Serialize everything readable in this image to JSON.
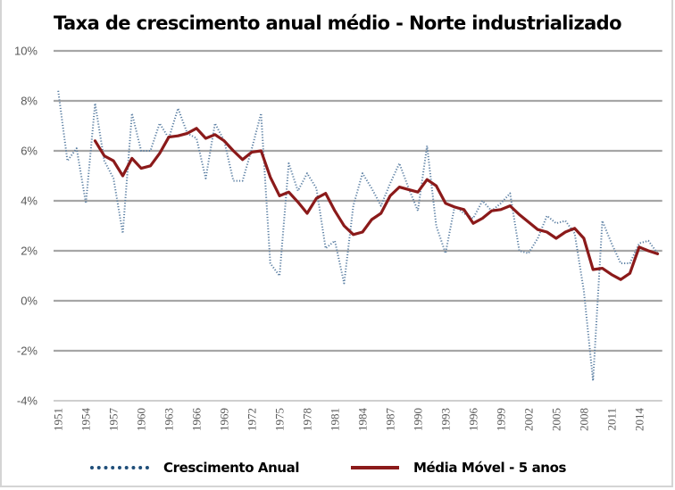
{
  "chart_data": {
    "type": "line",
    "title": "Taxa de crescimento anual médio - Norte industrializado",
    "xlabel": "",
    "ylabel": "",
    "ylim": [
      -4,
      10
    ],
    "y_ticks": [
      10,
      8,
      6,
      4,
      2,
      0,
      -2,
      -4
    ],
    "y_tick_labels": [
      "10%",
      "8%",
      "6%",
      "4%",
      "2%",
      "0%",
      "-2%",
      "-4%"
    ],
    "x_tick_labels": [
      "1951",
      "1954",
      "1957",
      "1960",
      "1963",
      "1966",
      "1969",
      "1972",
      "1975",
      "1978",
      "1981",
      "1984",
      "1987",
      "1990",
      "1993",
      "1996",
      "1999",
      "2002",
      "2005",
      "2008",
      "2011",
      "2014"
    ],
    "grid": true,
    "legend_position": "bottom",
    "x": [
      1951,
      1952,
      1953,
      1954,
      1955,
      1956,
      1957,
      1958,
      1959,
      1960,
      1961,
      1962,
      1963,
      1964,
      1965,
      1966,
      1967,
      1968,
      1969,
      1970,
      1971,
      1972,
      1973,
      1974,
      1975,
      1976,
      1977,
      1978,
      1979,
      1980,
      1981,
      1982,
      1983,
      1984,
      1985,
      1986,
      1987,
      1988,
      1989,
      1990,
      1991,
      1992,
      1993,
      1994,
      1995,
      1996,
      1997,
      1998,
      1999,
      2000,
      2001,
      2002,
      2003,
      2004,
      2005,
      2006,
      2007,
      2008,
      2009,
      2010,
      2011,
      2012,
      2013,
      2014,
      2015,
      2016
    ],
    "series": [
      {
        "name": "Crescimento Anual",
        "style": "dotted",
        "color": "#5b7fa3",
        "values": [
          8.4,
          5.6,
          6.1,
          3.9,
          7.9,
          5.6,
          4.9,
          2.7,
          7.5,
          6.0,
          6.0,
          7.1,
          6.5,
          7.7,
          6.7,
          6.5,
          4.9,
          7.1,
          6.4,
          4.8,
          4.8,
          6.1,
          7.5,
          1.5,
          1.0,
          5.5,
          4.4,
          5.1,
          4.5,
          2.1,
          2.4,
          0.7,
          3.8,
          5.1,
          4.5,
          3.8,
          4.7,
          5.5,
          4.5,
          3.6,
          6.2,
          3.0,
          1.9,
          3.8,
          3.5,
          3.3,
          4.0,
          3.6,
          3.9,
          4.3,
          2.0,
          1.9,
          2.5,
          3.4,
          3.1,
          3.2,
          2.7,
          0.4,
          -3.2,
          3.2,
          2.3,
          1.5,
          1.5,
          2.3,
          2.4,
          1.9
        ]
      },
      {
        "name": "Média Móvel - 5 anos",
        "style": "solid",
        "color": "#8b1a1a",
        "values": [
          null,
          null,
          null,
          null,
          6.4,
          5.8,
          5.6,
          5.0,
          5.7,
          5.3,
          5.4,
          5.9,
          6.55,
          6.6,
          6.7,
          6.9,
          6.5,
          6.65,
          6.4,
          6.0,
          5.65,
          5.95,
          6.0,
          4.95,
          4.2,
          4.35,
          3.95,
          3.5,
          4.1,
          4.3,
          3.6,
          3.0,
          2.65,
          2.75,
          3.25,
          3.5,
          4.2,
          4.55,
          4.45,
          4.35,
          4.85,
          4.6,
          3.9,
          3.75,
          3.65,
          3.1,
          3.3,
          3.6,
          3.65,
          3.8,
          3.45,
          3.15,
          2.85,
          2.75,
          2.5,
          2.75,
          2.9,
          2.5,
          1.25,
          1.3,
          1.05,
          0.85,
          1.1,
          2.15,
          2.0,
          1.88
        ]
      }
    ]
  },
  "legend": {
    "items": [
      {
        "label": "Crescimento Anual",
        "color": "#1f4e79"
      },
      {
        "label": "Média Móvel - 5 anos",
        "color": "#8b1a1a"
      }
    ]
  }
}
